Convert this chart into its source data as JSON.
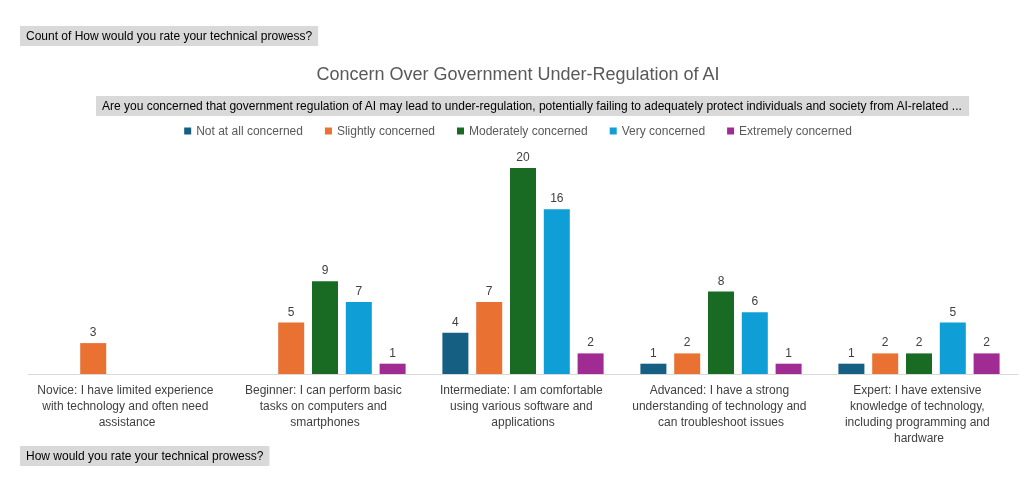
{
  "chart_data": {
    "type": "bar",
    "title": "Concern Over Government Under-Regulation of AI",
    "subtitle": "Are you concerned that government regulation of AI may lead to under-regulation, potentially failing to adequately protect individuals and society from AI-related ...",
    "xlabel": "How would you rate your technical prowess?",
    "annotations": [
      "Count of How would you rate your technical prowess?"
    ],
    "categories": [
      "Novice: I have limited experience with technology and often need assistance",
      "Beginner: I can perform basic tasks on computers and smartphones",
      "Intermediate: I am comfortable using various software and applications",
      "Advanced: I have a strong understanding of technology and can troubleshoot issues",
      "Expert: I have extensive knowledge of technology, including programming and hardware"
    ],
    "series": [
      {
        "name": "Not at all concerned",
        "color": "#156082",
        "values": [
          null,
          null,
          4,
          1,
          1
        ]
      },
      {
        "name": "Slightly concerned",
        "color": "#e97132",
        "values": [
          3,
          5,
          7,
          2,
          2
        ]
      },
      {
        "name": "Moderately concerned",
        "color": "#196b24",
        "values": [
          null,
          9,
          20,
          8,
          2
        ]
      },
      {
        "name": "Very concerned",
        "color": "#0f9ed5",
        "values": [
          null,
          7,
          16,
          6,
          5
        ]
      },
      {
        "name": "Extremely concerned",
        "color": "#a02b93",
        "values": [
          null,
          1,
          2,
          1,
          2
        ]
      }
    ],
    "data_labels": true,
    "legend": "top",
    "grid": false
  }
}
